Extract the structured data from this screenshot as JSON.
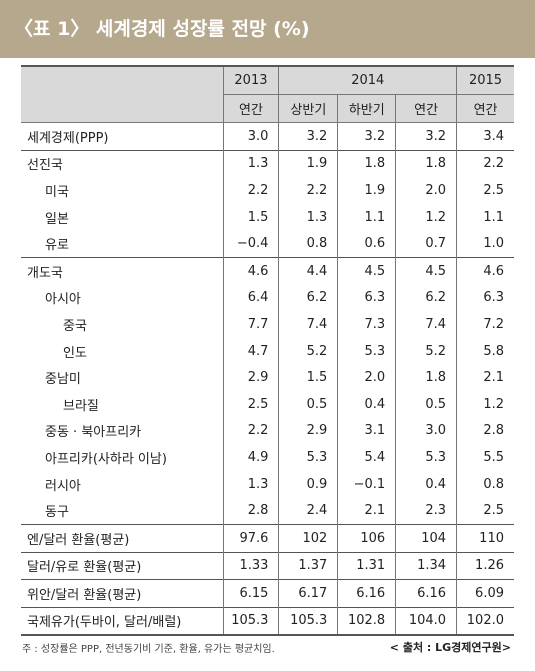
{
  "header": {
    "title": "〈표 1〉 세계경제 성장률 전망 (%)"
  },
  "table": {
    "years": [
      "2013",
      "2014",
      "2015"
    ],
    "subheaders": [
      "연간",
      "상반기",
      "하반기",
      "연간",
      "연간"
    ],
    "rows": [
      [
        "세계경제(PPP)",
        "3.0",
        "3.2",
        "3.2",
        "3.2",
        "3.4"
      ],
      [
        "선진국",
        "1.3",
        "1.9",
        "1.8",
        "1.8",
        "2.2"
      ],
      [
        "미국",
        "2.2",
        "2.2",
        "1.9",
        "2.0",
        "2.5"
      ],
      [
        "일본",
        "1.5",
        "1.3",
        "1.1",
        "1.2",
        "1.1"
      ],
      [
        "유로",
        "−0.4",
        "0.8",
        "0.6",
        "0.7",
        "1.0"
      ],
      [
        "개도국",
        "4.6",
        "4.4",
        "4.5",
        "4.5",
        "4.6"
      ],
      [
        "아시아",
        "6.4",
        "6.2",
        "6.3",
        "6.2",
        "6.3"
      ],
      [
        "중국",
        "7.7",
        "7.4",
        "7.3",
        "7.4",
        "7.2"
      ],
      [
        "인도",
        "4.7",
        "5.2",
        "5.3",
        "5.2",
        "5.8"
      ],
      [
        "중남미",
        "2.9",
        "1.5",
        "2.0",
        "1.8",
        "2.1"
      ],
      [
        "브라질",
        "2.5",
        "0.5",
        "0.4",
        "0.5",
        "1.2"
      ],
      [
        "중동 · 북아프리카",
        "2.2",
        "2.9",
        "3.1",
        "3.0",
        "2.8"
      ],
      [
        "아프리카(사하라 이남)",
        "4.9",
        "5.3",
        "5.4",
        "5.3",
        "5.5"
      ],
      [
        "러시아",
        "1.3",
        "0.9",
        "−0.1",
        "0.4",
        "0.8"
      ],
      [
        "동구",
        "2.8",
        "2.4",
        "2.1",
        "2.3",
        "2.5"
      ],
      [
        "엔/달러 환율(평균)",
        "97.6",
        "102",
        "106",
        "104",
        "110"
      ],
      [
        "달러/유로 환율(평균)",
        "1.33",
        "1.37",
        "1.31",
        "1.34",
        "1.26"
      ],
      [
        "위안/달러 환율(평균)",
        "6.15",
        "6.17",
        "6.16",
        "6.16",
        "6.09"
      ],
      [
        "국제유가(두바이, 달러/배럴)",
        "105.3",
        "105.3",
        "102.8",
        "104.0",
        "102.0"
      ]
    ]
  },
  "footer": {
    "note": "주 : 성장률은 PPP, 전년동기비 기준, 환율, 유가는 평균치임.",
    "source": "< 출처 : LG경제연구원>"
  }
}
